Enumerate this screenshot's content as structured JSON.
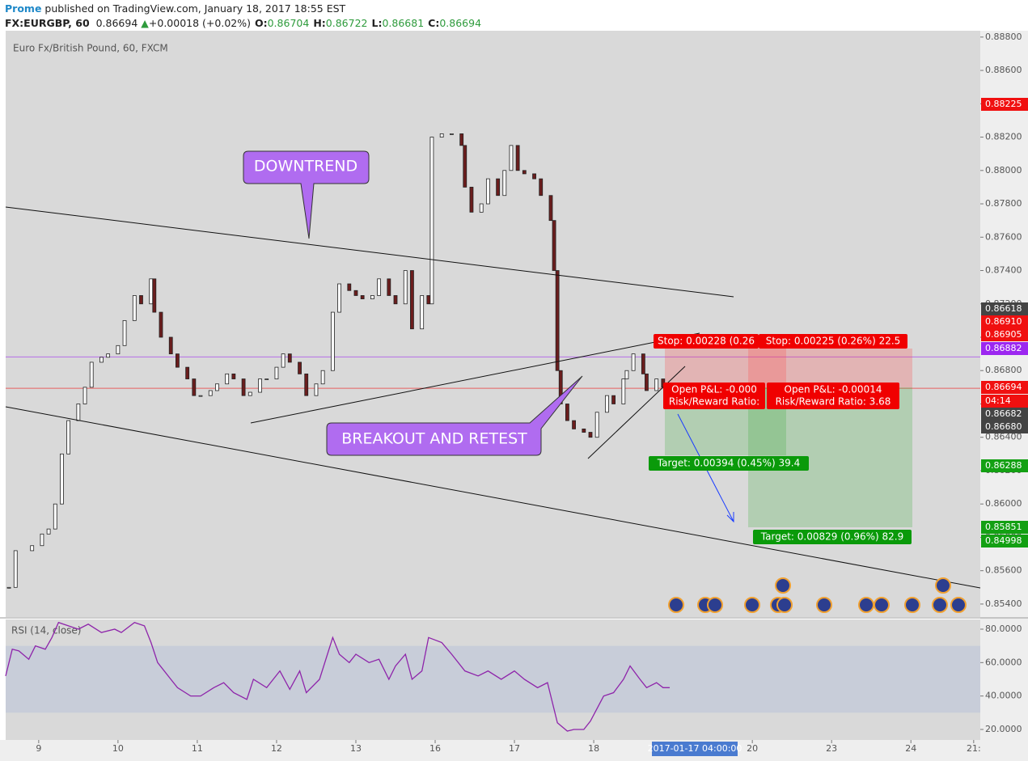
{
  "header": {
    "author": "Prome",
    "published": "published on TradingView.com, January 18, 2017 18:55 EST",
    "symbol": "FX:EURGBP, 60",
    "last": "0.86694",
    "arrow": "▲",
    "change": "+0.00018 (+0.02%)",
    "ohlc": [
      {
        "key": "O:",
        "value": "0.86704"
      },
      {
        "key": "H:",
        "value": "0.86722"
      },
      {
        "key": "L:",
        "value": "0.86681"
      },
      {
        "key": "C:",
        "value": "0.86694"
      }
    ]
  },
  "chart_data": {
    "type": "candlestick",
    "title": "Euro Fx/British Pound, 60, FXCM",
    "up_color": "#ffffff",
    "down_color": "#6b1d1d",
    "x": [
      1,
      3,
      8,
      11,
      13,
      15,
      17,
      19,
      22,
      24,
      26,
      29,
      31,
      34,
      36,
      39,
      41,
      44,
      45,
      47,
      50,
      52,
      55,
      57,
      59,
      62,
      64,
      67,
      69,
      72,
      74,
      77,
      79,
      82,
      84,
      86,
      89,
      91,
      94,
      96,
      99,
      101,
      104,
      106,
      108,
      111,
      113,
      116,
      118,
      121,
      123,
      126,
      128,
      129,
      132,
      135,
      138,
      139,
      141,
      144,
      146,
      149,
      151,
      153,
      155,
      157,
      160,
      162,
      165,
      166,
      167,
      168,
      170,
      172,
      175,
      177,
      179,
      182,
      184,
      187,
      188,
      190,
      193,
      194,
      197,
      199
    ],
    "close": [
      0.855,
      0.8572,
      0.8575,
      0.8582,
      0.8585,
      0.86,
      0.863,
      0.865,
      0.866,
      0.867,
      0.8685,
      0.8688,
      0.869,
      0.8695,
      0.871,
      0.8725,
      0.872,
      0.8735,
      0.8715,
      0.87,
      0.869,
      0.8682,
      0.8675,
      0.8665,
      0.8665,
      0.8668,
      0.8672,
      0.8678,
      0.8675,
      0.8665,
      0.8667,
      0.8675,
      0.8675,
      0.8682,
      0.869,
      0.8685,
      0.8678,
      0.8665,
      0.8672,
      0.868,
      0.8715,
      0.8732,
      0.8728,
      0.8725,
      0.8723,
      0.8725,
      0.8735,
      0.8725,
      0.872,
      0.874,
      0.8705,
      0.8725,
      0.872,
      0.882,
      0.8822,
      0.8822,
      0.8815,
      0.879,
      0.8775,
      0.878,
      0.8795,
      0.8785,
      0.88,
      0.8815,
      0.88,
      0.8798,
      0.8795,
      0.8785,
      0.877,
      0.874,
      0.868,
      0.866,
      0.865,
      0.8645,
      0.8643,
      0.864,
      0.8655,
      0.8665,
      0.866,
      0.8675,
      0.868,
      0.869,
      0.8678,
      0.8668,
      0.8675,
      0.867
    ],
    "xlim": [
      0,
      295
    ],
    "xticks": [
      {
        "value": 10,
        "label": "9"
      },
      {
        "value": 34,
        "label": "10"
      },
      {
        "value": 58,
        "label": "11"
      },
      {
        "value": 82,
        "label": "12"
      },
      {
        "value": 106,
        "label": "13"
      },
      {
        "value": 130,
        "label": "16"
      },
      {
        "value": 154,
        "label": "17"
      },
      {
        "value": 178,
        "label": "18"
      },
      {
        "value": 226,
        "label": "20"
      },
      {
        "value": 250,
        "label": "23"
      },
      {
        "value": 274,
        "label": "24"
      },
      {
        "value": 293,
        "label": "21:"
      }
    ],
    "crosshair_label": "2017-01-17 04:00:00",
    "ylim": [
      0.85322,
      0.88838
    ],
    "yticks": [
      {
        "value": 0.888,
        "label": "0.88800"
      },
      {
        "value": 0.886,
        "label": "0.88600"
      },
      {
        "value": 0.884,
        "label": "0.88400"
      },
      {
        "value": 0.882,
        "label": "0.88200"
      },
      {
        "value": 0.88,
        "label": "0.88000"
      },
      {
        "value": 0.878,
        "label": "0.87800"
      },
      {
        "value": 0.876,
        "label": "0.87600"
      },
      {
        "value": 0.874,
        "label": "0.87400"
      },
      {
        "value": 0.872,
        "label": "0.87200"
      },
      {
        "value": 0.87,
        "label": "0.87000"
      },
      {
        "value": 0.868,
        "label": "0.86800"
      },
      {
        "value": 0.866,
        "label": "0.86600"
      },
      {
        "value": 0.864,
        "label": "0.86400"
      },
      {
        "value": 0.862,
        "label": "0.86200"
      },
      {
        "value": 0.86,
        "label": "0.86000"
      },
      {
        "value": 0.858,
        "label": "0.85800"
      },
      {
        "value": 0.856,
        "label": "0.85600"
      },
      {
        "value": 0.854,
        "label": "0.85400"
      }
    ],
    "price_labels": [
      {
        "value": 0.88225,
        "label": "0.88225",
        "color": "#f01010"
      },
      {
        "value": 0.86618,
        "label": "0.86618",
        "color": "#444444"
      },
      {
        "value": 0.8691,
        "label": "0.86910",
        "color": "#f01010"
      },
      {
        "value": 0.86905,
        "label": "0.86905",
        "color": "#f01010"
      },
      {
        "value": 0.86882,
        "label": "0.86882",
        "color": "#9c27f0",
        "line": true
      },
      {
        "value": 0.86694,
        "label": "0.86694",
        "color": "#f01010",
        "line": true
      },
      {
        "label": "04:14",
        "color": "#f01010"
      },
      {
        "value": 0.86682,
        "label": "0.86682",
        "color": "#444444"
      },
      {
        "value": 0.8668,
        "label": "0.86680",
        "color": "#444444"
      },
      {
        "value": 0.86288,
        "label": "0.86288",
        "color": "#13a013"
      },
      {
        "value": 0.85851,
        "label": "0.85851",
        "color": "#13a013"
      },
      {
        "value": 0.84998,
        "label": "0.84998",
        "color": "#13a013"
      }
    ],
    "annotations": [
      "DOWNTREND",
      "BREAKOUT AND RETEST"
    ],
    "position_labels": [
      {
        "lines": [
          "Stop: 0.00228 (0.26"
        ],
        "color": "#f00000"
      },
      {
        "lines": [
          "Stop: 0.00225 (0.26%) 22.5"
        ],
        "color": "#f00000"
      },
      {
        "lines": [
          "Open P&L: -0.000",
          "Risk/Reward Ratio:"
        ],
        "color": "#f00000"
      },
      {
        "lines": [
          "Open P&L: -0.00014",
          "Risk/Reward Ratio: 3.68"
        ],
        "color": "#f00000"
      },
      {
        "lines": [
          "Target: 0.00394 (0.45%) 39.4"
        ],
        "color": "#0a9a0a"
      },
      {
        "lines": [
          "Target: 0.00829 (0.96%) 82.9"
        ],
        "color": "#0a9a0a"
      }
    ],
    "rsi": {
      "title": "RSI (14, close)",
      "color": "#8e24aa",
      "band": [
        30,
        70
      ],
      "x": [
        0,
        2,
        4,
        7,
        9,
        12,
        14,
        16,
        19,
        22,
        25,
        29,
        33,
        35,
        39,
        42,
        44,
        46,
        50,
        52,
        56,
        59,
        63,
        66,
        69,
        73,
        75,
        79,
        83,
        86,
        89,
        91,
        95,
        99,
        101,
        104,
        106,
        110,
        113,
        116,
        118,
        121,
        123,
        126,
        128,
        132,
        135,
        139,
        143,
        146,
        150,
        154,
        157,
        161,
        164,
        165,
        167,
        170,
        172,
        175,
        177,
        181,
        184,
        187,
        189,
        192,
        194,
        197,
        199,
        201
      ],
      "values": [
        52,
        68,
        67,
        62,
        70,
        68,
        75,
        84,
        82,
        80,
        83,
        78,
        80,
        78,
        84,
        82,
        72,
        60,
        50,
        45,
        40,
        40,
        45,
        48,
        42,
        38,
        50,
        45,
        55,
        44,
        55,
        42,
        50,
        75,
        65,
        60,
        65,
        60,
        62,
        50,
        58,
        65,
        50,
        55,
        75,
        72,
        65,
        55,
        52,
        55,
        50,
        55,
        50,
        45,
        48,
        40,
        24,
        19,
        20,
        20,
        25,
        40,
        42,
        50,
        58,
        50,
        45,
        48,
        45,
        45
      ],
      "ylim": [
        13.7,
        85.8
      ],
      "yticks": [
        {
          "value": 80,
          "label": "80.0000"
        },
        {
          "value": 60,
          "label": "60.0000"
        },
        {
          "value": 40,
          "label": "40.0000"
        },
        {
          "value": 20,
          "label": "20.0000"
        }
      ]
    }
  }
}
